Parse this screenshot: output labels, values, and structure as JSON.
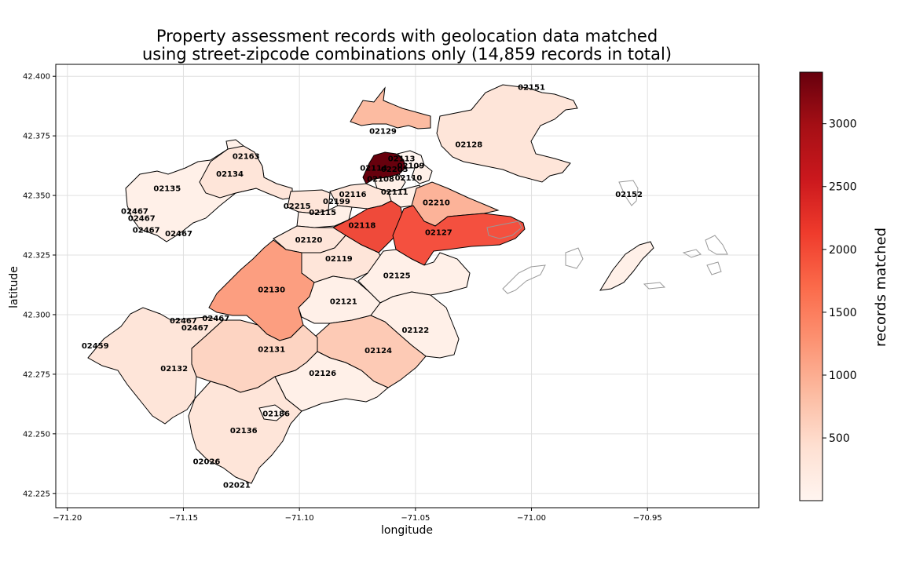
{
  "chart_data": {
    "type": "choropleth",
    "title": [
      "Property assessment records with geolocation data matched",
      "using street-zipcode combinations only (14,859 records in total)"
    ],
    "xlabel": "longitude",
    "ylabel": "latitude",
    "xlim": [
      -71.205,
      -70.902
    ],
    "ylim": [
      42.219,
      42.405
    ],
    "x_ticks": [
      -71.2,
      -71.15,
      -71.1,
      -71.05,
      -71.0,
      -70.95
    ],
    "x_tick_labels": [
      "−71.20",
      "−71.15",
      "−71.10",
      "−71.05",
      "−71.00",
      "−70.95"
    ],
    "y_ticks": [
      42.4,
      42.375,
      42.35,
      42.325,
      42.3,
      42.275,
      42.25,
      42.225
    ],
    "y_tick_labels": [
      "42.400",
      "42.375",
      "42.350",
      "42.325",
      "42.300",
      "42.275",
      "42.250",
      "42.225"
    ],
    "grid": true,
    "colormap": "Reds",
    "colorbar": {
      "label": "records matched",
      "min": 1,
      "max": 3410,
      "ticks": [
        500,
        1000,
        1500,
        2000,
        2500,
        3000
      ],
      "tick_labels": [
        "500",
        "1000",
        "1500",
        "2000",
        "2500",
        "3000"
      ]
    },
    "regions": [
      {
        "zip": "02151",
        "lon": -71.0,
        "lat": 42.3955,
        "value": 60
      },
      {
        "zip": "02129",
        "lon": -71.064,
        "lat": 42.377,
        "value": 900
      },
      {
        "zip": "02128",
        "lon": -71.027,
        "lat": 42.3715,
        "value": 230
      },
      {
        "zip": "02163",
        "lon": -71.123,
        "lat": 42.3665,
        "value": 20
      },
      {
        "zip": "02134",
        "lon": -71.13,
        "lat": 42.359,
        "value": 150
      },
      {
        "zip": "02113",
        "lon": -71.056,
        "lat": 42.3655,
        "value": 30
      },
      {
        "zip": "02114",
        "lon": -71.068,
        "lat": 42.3615,
        "value": 3400
      },
      {
        "zip": "02203",
        "lon": -71.059,
        "lat": 42.361,
        "value": 20
      },
      {
        "zip": "02109",
        "lon": -71.052,
        "lat": 42.3625,
        "value": 40
      },
      {
        "zip": "02110",
        "lon": -71.053,
        "lat": 42.3575,
        "value": 40
      },
      {
        "zip": "02108",
        "lon": -71.065,
        "lat": 42.357,
        "value": 50
      },
      {
        "zip": "02135",
        "lon": -71.157,
        "lat": 42.353,
        "value": 200
      },
      {
        "zip": "02111",
        "lon": -71.059,
        "lat": 42.3515,
        "value": 40
      },
      {
        "zip": "02116",
        "lon": -71.077,
        "lat": 42.3505,
        "value": 100
      },
      {
        "zip": "02152",
        "lon": -70.958,
        "lat": 42.3505,
        "value": 5
      },
      {
        "zip": "02199",
        "lon": -71.084,
        "lat": 42.3475,
        "value": 30
      },
      {
        "zip": "02210",
        "lon": -71.041,
        "lat": 42.347,
        "value": 700
      },
      {
        "zip": "02215",
        "lon": -71.101,
        "lat": 42.3455,
        "value": 100
      },
      {
        "zip": "02115",
        "lon": -71.09,
        "lat": 42.343,
        "value": 60
      },
      {
        "zip": "02467",
        "lon": -71.171,
        "lat": 42.3435,
        "value": 10
      },
      {
        "zip": "02467",
        "lon": -71.168,
        "lat": 42.3405,
        "value": 10
      },
      {
        "zip": "02118",
        "lon": -71.073,
        "lat": 42.3375,
        "value": 2250
      },
      {
        "zip": "02127",
        "lon": -71.04,
        "lat": 42.3345,
        "value": 2100
      },
      {
        "zip": "02467",
        "lon": -71.166,
        "lat": 42.3355,
        "value": 10
      },
      {
        "zip": "02467",
        "lon": -71.152,
        "lat": 42.334,
        "value": 10
      },
      {
        "zip": "02120",
        "lon": -71.096,
        "lat": 42.3315,
        "value": 80
      },
      {
        "zip": "02119",
        "lon": -71.083,
        "lat": 42.3235,
        "value": 250
      },
      {
        "zip": "02125",
        "lon": -71.058,
        "lat": 42.3165,
        "value": 150
      },
      {
        "zip": "02130",
        "lon": -71.112,
        "lat": 42.3105,
        "value": 1000
      },
      {
        "zip": "02121",
        "lon": -71.081,
        "lat": 42.3055,
        "value": 100
      },
      {
        "zip": "02467",
        "lon": -71.15,
        "lat": 42.2975,
        "value": 10
      },
      {
        "zip": "02467",
        "lon": -71.136,
        "lat": 42.2985,
        "value": 10
      },
      {
        "zip": "02467",
        "lon": -71.145,
        "lat": 42.2945,
        "value": 10
      },
      {
        "zip": "02122",
        "lon": -71.05,
        "lat": 42.2935,
        "value": 100
      },
      {
        "zip": "02459",
        "lon": -71.188,
        "lat": 42.287,
        "value": 5
      },
      {
        "zip": "02131",
        "lon": -71.112,
        "lat": 42.2855,
        "value": 300
      },
      {
        "zip": "02124",
        "lon": -71.066,
        "lat": 42.285,
        "value": 450
      },
      {
        "zip": "02132",
        "lon": -71.154,
        "lat": 42.2775,
        "value": 200
      },
      {
        "zip": "02126",
        "lon": -71.09,
        "lat": 42.2755,
        "value": 150
      },
      {
        "zip": "02186",
        "lon": -71.11,
        "lat": 42.2585,
        "value": 10
      },
      {
        "zip": "02136",
        "lon": -71.124,
        "lat": 42.2515,
        "value": 250
      },
      {
        "zip": "02026",
        "lon": -71.14,
        "lat": 42.2385,
        "value": 10
      },
      {
        "zip": "02021",
        "lon": -71.127,
        "lat": 42.2285,
        "value": 10
      }
    ]
  }
}
